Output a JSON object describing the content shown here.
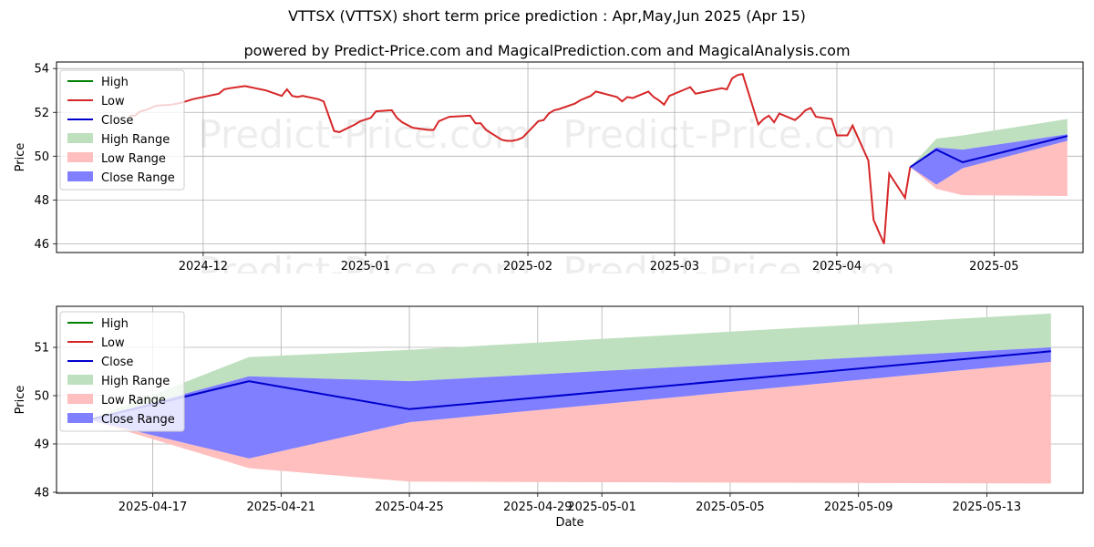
{
  "title": "VTTSX (VTTSX) short term price prediction : Apr,May,Jun 2025 (Apr 15)",
  "subtitle": "powered by Predict-Price.com and MagicalPrediction.com and MagicalAnalysis.com",
  "watermark": "Predict-Price.com",
  "colors": {
    "high": "#008000",
    "low": "#d62728",
    "close": "#0000cc",
    "high_range": "#bfe0bf",
    "low_range": "#ffbfbf",
    "close_range": "#7f7fff"
  },
  "legend": {
    "high": "High",
    "low": "Low",
    "close": "Close",
    "high_range": "High Range",
    "low_range": "Low Range",
    "close_range": "Close Range"
  },
  "chart_data": [
    {
      "type": "line",
      "xlabel": "Date",
      "ylabel": "Price",
      "xlim": [
        "2024-11-03",
        "2025-05-18"
      ],
      "ylim": [
        45.6,
        54.3
      ],
      "yticks": [
        46,
        48,
        50,
        52,
        54
      ],
      "xticks": [
        "2024-12",
        "2025-01",
        "2025-02",
        "2025-03",
        "2025-04",
        "2025-05"
      ],
      "grid": true,
      "legend_position": "top-left",
      "series": [
        {
          "name": "Low",
          "x": [
            "2024-11-17",
            "2024-11-18",
            "2024-11-19",
            "2024-11-20",
            "2024-11-21",
            "2024-11-22",
            "2024-11-25",
            "2024-11-26",
            "2024-11-27",
            "2024-11-29",
            "2024-12-02",
            "2024-12-03",
            "2024-12-04",
            "2024-12-05",
            "2024-12-06",
            "2024-12-09",
            "2024-12-10",
            "2024-12-11",
            "2024-12-12",
            "2024-12-13",
            "2024-12-16",
            "2024-12-17",
            "2024-12-18",
            "2024-12-19",
            "2024-12-20",
            "2024-12-23",
            "2024-12-24",
            "2024-12-26",
            "2024-12-27",
            "2024-12-30",
            "2024-12-31",
            "2025-01-02",
            "2025-01-03",
            "2025-01-06",
            "2025-01-07",
            "2025-01-08",
            "2025-01-10",
            "2025-01-13",
            "2025-01-14",
            "2025-01-15",
            "2025-01-16",
            "2025-01-17",
            "2025-01-21",
            "2025-01-22",
            "2025-01-23",
            "2025-01-24",
            "2025-01-27",
            "2025-01-28",
            "2025-01-29",
            "2025-01-30",
            "2025-01-31",
            "2025-02-03",
            "2025-02-04",
            "2025-02-05",
            "2025-02-06",
            "2025-02-07",
            "2025-02-10",
            "2025-02-11",
            "2025-02-12",
            "2025-02-13",
            "2025-02-14",
            "2025-02-18",
            "2025-02-19",
            "2025-02-20",
            "2025-02-21",
            "2025-02-24",
            "2025-02-25",
            "2025-02-26",
            "2025-02-27",
            "2025-02-28",
            "2025-03-03",
            "2025-03-04",
            "2025-03-05",
            "2025-03-06",
            "2025-03-07",
            "2025-03-10",
            "2025-03-11",
            "2025-03-12",
            "2025-03-13",
            "2025-03-14",
            "2025-03-17",
            "2025-03-18",
            "2025-03-19",
            "2025-03-20",
            "2025-03-21",
            "2025-03-24",
            "2025-03-25",
            "2025-03-26",
            "2025-03-27",
            "2025-03-28",
            "2025-03-31",
            "2025-04-01",
            "2025-04-02",
            "2025-04-03",
            "2025-04-04",
            "2025-04-07",
            "2025-04-08",
            "2025-04-09",
            "2025-04-10",
            "2025-04-11",
            "2025-04-14",
            "2025-04-15"
          ],
          "values": [
            51.85,
            51.85,
            52.05,
            52.1,
            52.2,
            52.3,
            52.35,
            52.4,
            52.45,
            52.6,
            52.75,
            52.8,
            52.85,
            53.05,
            53.1,
            53.2,
            53.15,
            53.1,
            53.05,
            53.0,
            52.75,
            53.05,
            52.75,
            52.7,
            52.75,
            52.6,
            52.5,
            51.15,
            51.1,
            51.45,
            51.6,
            51.75,
            52.05,
            52.1,
            51.75,
            51.55,
            51.3,
            51.2,
            51.2,
            51.6,
            51.7,
            51.8,
            51.85,
            51.5,
            51.5,
            51.2,
            50.75,
            50.7,
            50.7,
            50.75,
            50.85,
            51.6,
            51.65,
            51.95,
            52.1,
            52.15,
            52.4,
            52.55,
            52.65,
            52.75,
            52.95,
            52.7,
            52.5,
            52.7,
            52.65,
            52.95,
            52.7,
            52.55,
            52.35,
            52.75,
            53.05,
            53.15,
            52.85,
            52.9,
            52.95,
            53.1,
            53.05,
            53.55,
            53.7,
            53.75,
            53.8,
            53.7,
            53.05,
            52.9,
            52.85,
            52.8,
            52.75,
            52.85,
            52.2,
            52.55,
            52.3,
            52.25,
            52.0,
            51.75,
            52.5,
            51.85,
            52.1,
            51.6,
            51.1,
            50.75,
            50.95,
            50.5
          ],
          "note_continuation_x": [
            "2025-03-17",
            "2025-03-18",
            "2025-03-19",
            "2025-03-20",
            "2025-03-21",
            "2025-03-24",
            "2025-03-25",
            "2025-03-26",
            "2025-03-27",
            "2025-03-28",
            "2025-03-31",
            "2025-04-01",
            "2025-04-02",
            "2025-04-03",
            "2025-04-04",
            "2025-04-07",
            "2025-04-08",
            "2025-04-09",
            "2025-04-10",
            "2025-04-11",
            "2025-04-14",
            "2025-04-15"
          ],
          "continuation_values": [
            51.45,
            51.7,
            51.85,
            51.55,
            51.95,
            51.65,
            51.85,
            52.1,
            52.2,
            51.8,
            51.7,
            50.95,
            50.95,
            50.95,
            51.4,
            49.8,
            47.1,
            46.55,
            46.0,
            49.2,
            48.1,
            49.5
          ]
        }
      ]
    },
    {
      "type": "area",
      "xlabel": "Date",
      "ylabel": "Price",
      "xlim": [
        "2025-04-14",
        "2025-05-16"
      ],
      "ylim": [
        47.98,
        51.85
      ],
      "yticks": [
        48,
        49,
        50,
        51
      ],
      "xticks": [
        "2025-04-17",
        "2025-04-21",
        "2025-04-25",
        "2025-04-29",
        "2025-05-01",
        "2025-05-05",
        "2025-05-09",
        "2025-05-13"
      ],
      "grid": true,
      "legend_position": "top-left",
      "forecast_x": [
        "2025-04-15",
        "2025-04-20",
        "2025-04-25",
        "2025-05-15"
      ],
      "series": [
        {
          "name": "High Range",
          "upper": [
            49.5,
            50.8,
            50.95,
            51.7
          ],
          "lower": [
            49.5,
            50.4,
            50.3,
            51.0
          ]
        },
        {
          "name": "Close Range",
          "upper": [
            49.5,
            50.4,
            50.3,
            51.0
          ],
          "lower": [
            49.5,
            48.7,
            49.45,
            50.7
          ]
        },
        {
          "name": "Low Range",
          "upper": [
            49.5,
            48.7,
            49.45,
            50.7
          ],
          "lower": [
            49.5,
            48.5,
            48.22,
            48.18
          ]
        },
        {
          "name": "Close",
          "values": [
            49.5,
            50.3,
            49.72,
            50.92
          ]
        }
      ]
    }
  ]
}
